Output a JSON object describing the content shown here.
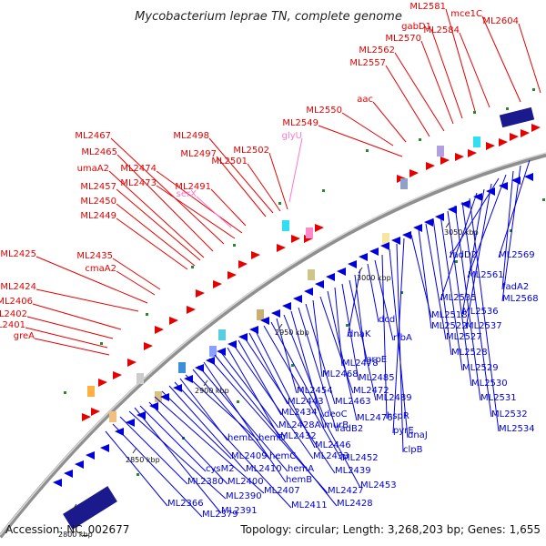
{
  "title": "Mycobacterium leprae TN, complete genome",
  "footer": {
    "accession": "Accession: NC_002677",
    "summary": "Topology: circular; Length: 3,268,203 bp; Genes: 1,655"
  },
  "colors": {
    "forward": "#e60000",
    "reverse": "#0000dd",
    "rna": "#ff77cc",
    "backbone": "#999999"
  },
  "ticks": [
    "2800 kbp",
    "2850 kbp",
    "2900 kbp",
    "2950 kbp",
    "3000 kbp",
    "3050 kbp"
  ],
  "forward_labels": [
    "greA",
    "ML2401",
    "ML2402",
    "ML2406",
    "ML2424",
    "ML2425",
    "cmaA2",
    "ML2435",
    "ML2449",
    "ML2450",
    "ML2457",
    "umaA2",
    "ML2465",
    "ML2467",
    "ML2473",
    "ML2474",
    "serX",
    "ML2491",
    "ML2497",
    "ML2498",
    "ML2501",
    "ML2502",
    "glyU",
    "ML2549",
    "ML2550",
    "aac",
    "ML2557",
    "ML2562",
    "ML2570",
    "gabD1",
    "ML2581",
    "ML2584",
    "mce1C",
    "ML2604"
  ],
  "reverse_labels": [
    "ML2366",
    "ML2379",
    "ML2380",
    "ML2390",
    "ML2391",
    "cysM2",
    "ML2400",
    "ML2407",
    "ML2409",
    "ML2410",
    "ML2411",
    "hemL",
    "hemD",
    "hemC",
    "hemA",
    "hemB",
    "ML2427",
    "ML2428",
    "ML2428A",
    "ML2432",
    "ML2433",
    "ML2434",
    "ML2439",
    "ML2443",
    "ML2446",
    "ML2452",
    "ML2453",
    "ML2454",
    "deoC",
    "murB",
    "fadB2",
    "ML2463",
    "ML2468",
    "ML2472",
    "ML2476",
    "ML2478",
    "ML2485",
    "ML2489",
    "grpE",
    "dnaK",
    "dcd",
    "rfbA",
    "hspR",
    "dnaJ",
    "clpB",
    "pyrE",
    "ML2518",
    "ML2522",
    "ML2527",
    "ML2528",
    "ML2529",
    "ML2530",
    "ML2531",
    "ML2532",
    "ML2534",
    "ML2535",
    "ML2536",
    "ML2537",
    "fadD2",
    "ML2561",
    "fadA2",
    "ML2568",
    "ML2569"
  ]
}
